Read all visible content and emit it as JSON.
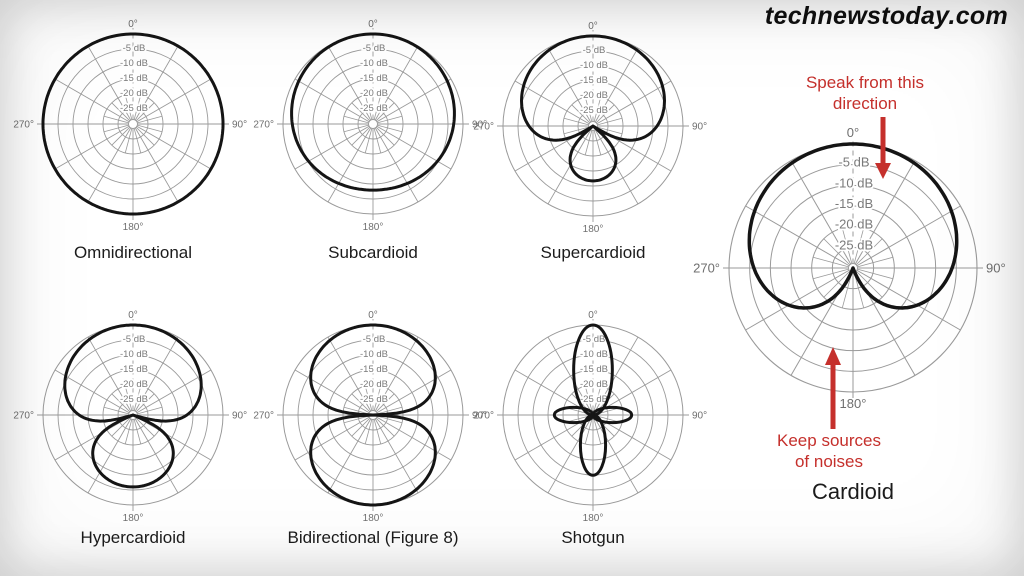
{
  "watermark": "technewstoday.com",
  "colors": {
    "annotation_red": "#c5302c",
    "pattern_black": "#151515",
    "grid_gray": "#9a9a9a",
    "db_label_gray": "#7a7a7a",
    "angle_label_gray": "#6f6f6f",
    "caption_black": "#1c1c1c",
    "watermark_black": "#101010",
    "background_white": "#ffffff",
    "vignette_gray": "#d9d9d9"
  },
  "annotations": {
    "speak_direction": {
      "line1": "Speak from this",
      "line2": "direction"
    },
    "noise_direction": {
      "line1": "Keep sources",
      "line2": "of noises"
    }
  },
  "polar_axes": {
    "db_ring_labels": [
      "-5 dB",
      "-10 dB",
      "-15 dB",
      "-20 dB",
      "-25 dB"
    ],
    "db_ring_values": [
      -5,
      -10,
      -15,
      -20,
      -25
    ],
    "outer_ring_db": 0,
    "db_floor": -30,
    "rings": 6,
    "angle_labels": {
      "top": "0°",
      "right": "90°",
      "bottom": "180°",
      "left": "270°"
    },
    "major_radial_step_deg": 30,
    "minor_radial_step_deg": 15
  },
  "chart_data": [
    {
      "id": "omnidirectional",
      "caption": "Omnidirectional",
      "type": "polar_pattern",
      "polar_equation": "r(θ) = a + b·cos(θ), plotted in dB (floor -30 dB)",
      "a": 1.0,
      "b": 0.0
    },
    {
      "id": "subcardioid",
      "caption": "Subcardioid",
      "type": "polar_pattern",
      "polar_equation": "r(θ) = a + b·cos(θ), plotted in dB (floor -30 dB)",
      "a": 0.7,
      "b": 0.3
    },
    {
      "id": "supercardioid",
      "caption": "Supercardioid",
      "type": "polar_pattern",
      "polar_equation": "r(θ) = a + b·cos(θ), plotted in dB (floor -30 dB)",
      "a": 0.37,
      "b": 0.63
    },
    {
      "id": "hypercardioid",
      "caption": "Hypercardioid",
      "type": "polar_pattern",
      "polar_equation": "r(θ) = a + b·cos(θ), plotted in dB (floor -30 dB)",
      "a": 0.25,
      "b": 0.75
    },
    {
      "id": "bidirectional",
      "caption": "Bidirectional (Figure 8)",
      "type": "polar_pattern",
      "polar_equation": "r(θ) = a + b·cos(θ), plotted in dB (floor -30 dB)",
      "a": 0.0,
      "b": 1.0
    },
    {
      "id": "shotgun",
      "caption": "Shotgun",
      "type": "polar_lobes",
      "lobes": [
        {
          "name": "front-lobe",
          "cx": 0,
          "cy": -0.5,
          "rx": 0.215,
          "ry": 0.5
        },
        {
          "name": "rear-lobe",
          "cx": 0,
          "cy": 0.335,
          "rx": 0.14,
          "ry": 0.335
        },
        {
          "name": "side-lobe-right",
          "cx": 0.215,
          "cy": 0,
          "rx": 0.215,
          "ry": 0.085
        },
        {
          "name": "side-lobe-left",
          "cx": -0.215,
          "cy": 0,
          "rx": 0.215,
          "ry": 0.085
        }
      ]
    },
    {
      "id": "cardioid",
      "caption": "Cardioid",
      "type": "polar_pattern",
      "polar_equation": "r(θ) = a + b·cos(θ), plotted in dB (floor -30 dB)",
      "a": 0.5,
      "b": 0.5
    }
  ]
}
